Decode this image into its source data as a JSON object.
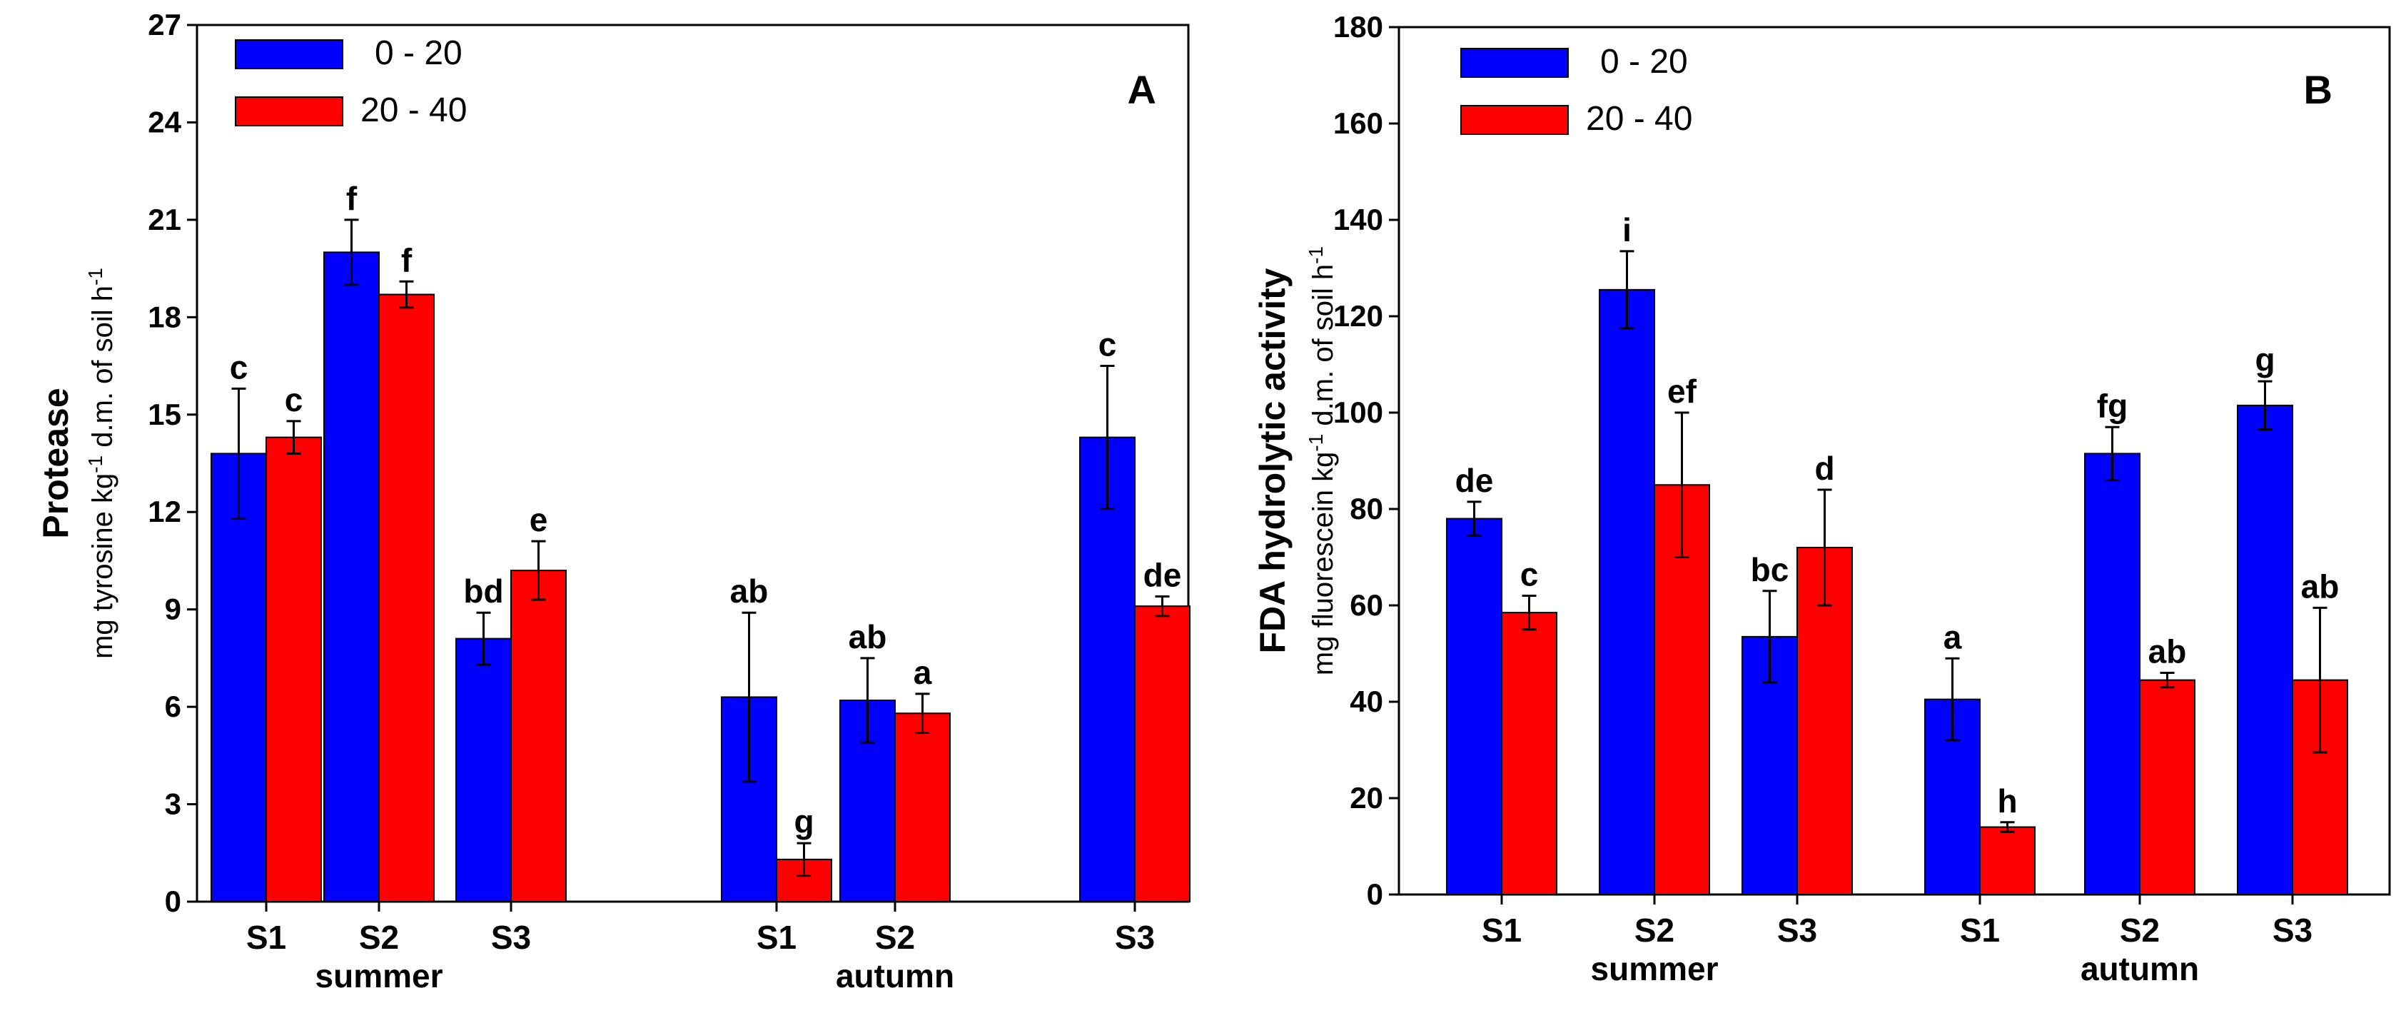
{
  "chart_data": [
    {
      "type": "bar",
      "panel_label": "A",
      "title": "",
      "ylabel": "Protease",
      "ylabel_units": [
        "mg tyrosine kg",
        "-1",
        " d.m. of soil h",
        "-1"
      ],
      "ylim": [
        0,
        27
      ],
      "yticks": [
        0,
        3,
        6,
        9,
        12,
        15,
        18,
        21,
        24,
        27
      ],
      "categories": [
        "S1",
        "S2",
        "S3",
        "S1",
        "S2",
        "S3"
      ],
      "seasons": [
        {
          "label": "summer",
          "under_index": 1
        },
        {
          "label": "autumn",
          "under_index": 4
        }
      ],
      "legend_position": "top-left",
      "series": [
        {
          "name": "0 - 20",
          "color": "#0000ff",
          "values": [
            13.8,
            20.0,
            8.1,
            6.3,
            6.2,
            14.3
          ],
          "errors": [
            2.0,
            1.0,
            0.8,
            2.6,
            1.3,
            2.2
          ],
          "letters": [
            "c",
            "f",
            "bd",
            "ab",
            "ab",
            "c"
          ]
        },
        {
          "name": "20 - 40",
          "color": "#ff0000",
          "values": [
            14.3,
            18.7,
            10.2,
            1.3,
            5.8,
            9.1
          ],
          "errors": [
            0.5,
            0.4,
            0.9,
            0.5,
            0.6,
            0.3
          ],
          "letters": [
            "c",
            "f",
            "e",
            "g",
            "a",
            "de"
          ]
        }
      ]
    },
    {
      "type": "bar",
      "panel_label": "B",
      "title": "",
      "ylabel": "FDA hydrolytic activity",
      "ylabel_units": [
        "mg fluorescein kg",
        "-1",
        " d.m. of soil h",
        "-1"
      ],
      "ylim": [
        0,
        180
      ],
      "yticks": [
        0,
        20,
        40,
        60,
        80,
        100,
        120,
        140,
        160,
        180
      ],
      "categories": [
        "S1",
        "S2",
        "S3",
        "S1",
        "S2",
        "S3"
      ],
      "seasons": [
        {
          "label": "summer",
          "under_index": 1
        },
        {
          "label": "autumn",
          "under_index": 4
        }
      ],
      "legend_position": "top-left",
      "series": [
        {
          "name": "0 - 20",
          "color": "#0000ff",
          "values": [
            78,
            125.5,
            53.5,
            40.5,
            91.5,
            101.5
          ],
          "errors": [
            3.5,
            8,
            9.5,
            8.5,
            5.5,
            5
          ],
          "letters": [
            "de",
            "i",
            "bc",
            "a",
            "fg",
            "g"
          ]
        },
        {
          "name": "20 - 40",
          "color": "#ff0000",
          "values": [
            58.5,
            85,
            72,
            14,
            44.5,
            44.5
          ],
          "errors": [
            3.5,
            15,
            12,
            1,
            1.5,
            15
          ],
          "letters": [
            "c",
            "ef",
            "d",
            "h",
            "ab",
            "ab"
          ]
        }
      ]
    }
  ]
}
